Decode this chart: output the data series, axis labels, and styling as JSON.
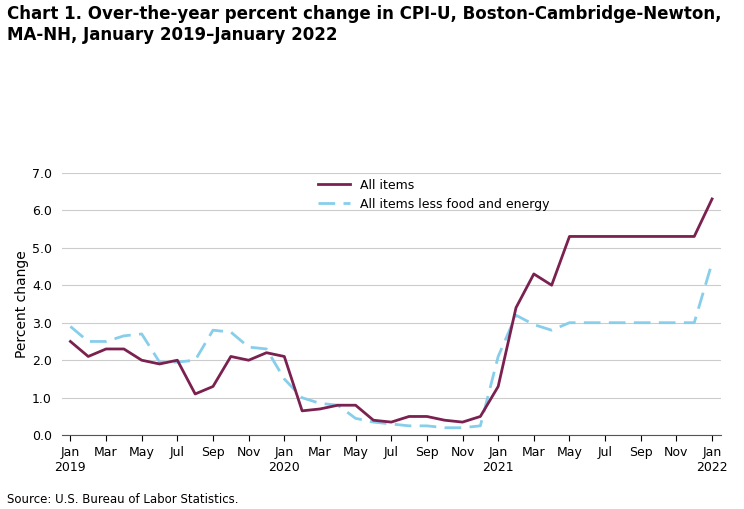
{
  "title": "Chart 1. Over-the-year percent change in CPI-U, Boston-Cambridge-Newton,\nMA-NH, January 2019–January 2022",
  "ylabel": "Percent change",
  "source": "Source: U.S. Bureau of Labor Statistics.",
  "ylim": [
    0.0,
    7.0
  ],
  "yticks": [
    0.0,
    1.0,
    2.0,
    3.0,
    4.0,
    5.0,
    6.0,
    7.0
  ],
  "all_items_values": [
    2.5,
    2.1,
    2.3,
    2.3,
    2.0,
    1.9,
    2.0,
    1.1,
    1.3,
    2.1,
    2.0,
    2.2,
    2.1,
    0.65,
    0.7,
    0.8,
    0.8,
    0.4,
    0.35,
    0.5,
    0.5,
    0.4,
    0.35,
    0.5,
    1.3,
    3.4,
    4.3,
    4.0,
    5.3,
    5.3,
    5.3,
    5.3,
    5.3,
    5.3,
    5.3,
    5.3,
    6.3
  ],
  "all_items_label": "All items",
  "all_items_color": "#7B2150",
  "core_values": [
    2.9,
    2.5,
    2.5,
    2.65,
    2.7,
    1.95,
    1.95,
    2.0,
    2.8,
    2.75,
    2.35,
    2.3,
    1.5,
    1.0,
    0.85,
    0.8,
    0.45,
    0.35,
    0.3,
    0.25,
    0.25,
    0.2,
    0.2,
    0.25,
    2.1,
    3.2,
    2.95,
    2.8,
    3.0,
    3.0,
    3.0,
    3.0,
    3.0,
    3.0,
    3.0,
    3.0,
    4.6
  ],
  "core_label": "All items less food and energy",
  "core_color": "#87CEEB",
  "x_tick_labels": [
    "Jan\n2019",
    "Mar",
    "May",
    "Jul",
    "Sep",
    "Nov",
    "Jan\n2020",
    "Mar",
    "May",
    "Jul",
    "Sep",
    "Nov",
    "Jan\n2021",
    "Mar",
    "May",
    "Jul",
    "Sep",
    "Nov",
    "Jan\n2022"
  ],
  "x_tick_positions": [
    0,
    2,
    4,
    6,
    8,
    10,
    12,
    14,
    16,
    18,
    20,
    22,
    24,
    26,
    28,
    30,
    32,
    34,
    36
  ],
  "background_color": "#ffffff",
  "grid_color": "#cccccc",
  "title_fontsize": 12,
  "axis_label_fontsize": 10,
  "tick_fontsize": 9
}
